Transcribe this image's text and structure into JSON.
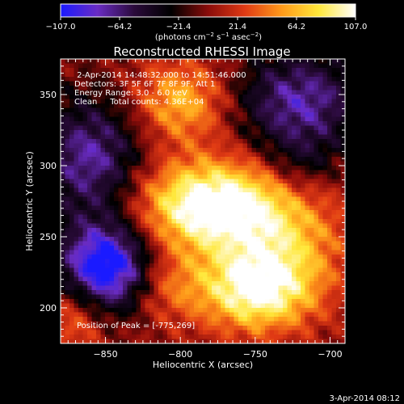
{
  "chart_data": {
    "type": "heatmap",
    "title": "Reconstructed RHESSI Image",
    "xlabel": "Heliocentric X (arcsec)",
    "ylabel": "Heliocentric Y (arcsec)",
    "xlim": [
      -880,
      -690
    ],
    "ylim": [
      175,
      375
    ],
    "x_ticks": [
      -850,
      -800,
      -750,
      -700
    ],
    "y_ticks": [
      200,
      250,
      300,
      350
    ],
    "x_tick_labels": [
      "−850",
      "−800",
      "−750",
      "−700"
    ],
    "y_tick_labels": [
      "200",
      "250",
      "300",
      "350"
    ],
    "colorbar": {
      "min": -107.0,
      "max": 107.0,
      "tick_values": [
        -107.0,
        -64.2,
        -21.4,
        21.4,
        64.2,
        107.0
      ],
      "tick_labels": [
        "−107.0",
        "−64.2",
        "−21.4",
        "21.4",
        "64.2",
        "107.0"
      ],
      "units_parts": [
        "(photons cm",
        "−2",
        " s",
        "−1",
        " asec",
        "−2",
        ")"
      ],
      "colormap": [
        "#1a1aff",
        "#6a2cc4",
        "#2a0a3a",
        "#000000",
        "#8a0c0a",
        "#e03a14",
        "#ff9a1a",
        "#ffe83a",
        "#ffffff"
      ]
    },
    "annotations": [
      " 2-Apr-2014 14:48:32.000 to 14:51:46.000",
      "Detectors: 3F 5F 6F 7F 8F 9F, Att 1",
      "Energy Range: 3.0 - 6.0 keV",
      "Clean     Total counts: 4.36E+04"
    ],
    "peak_text": "Position of Peak = [-775,269]",
    "sources": [
      {
        "x": -780,
        "y": 272,
        "sx": 34,
        "sy": 22,
        "amp": 120
      },
      {
        "x": -750,
        "y": 212,
        "sx": 26,
        "sy": 20,
        "amp": 95
      },
      {
        "x": -800,
        "y": 345,
        "sx": 22,
        "sy": 20,
        "amp": 65
      },
      {
        "x": -730,
        "y": 245,
        "sx": 30,
        "sy": 30,
        "amp": 55
      },
      {
        "x": -870,
        "y": 195,
        "sx": 15,
        "sy": 20,
        "amp": 45
      },
      {
        "x": -810,
        "y": 215,
        "sx": 20,
        "sy": 18,
        "amp": 40
      },
      {
        "x": -850,
        "y": 228,
        "sx": 22,
        "sy": 22,
        "amp": -125
      },
      {
        "x": -860,
        "y": 305,
        "sx": 25,
        "sy": 30,
        "amp": -75
      },
      {
        "x": -720,
        "y": 345,
        "sx": 30,
        "sy": 25,
        "amp": -75
      },
      {
        "x": -720,
        "y": 300,
        "sx": 18,
        "sy": 16,
        "amp": -30
      }
    ]
  },
  "footer": {
    "timestamp": "3-Apr-2014 08:12"
  }
}
